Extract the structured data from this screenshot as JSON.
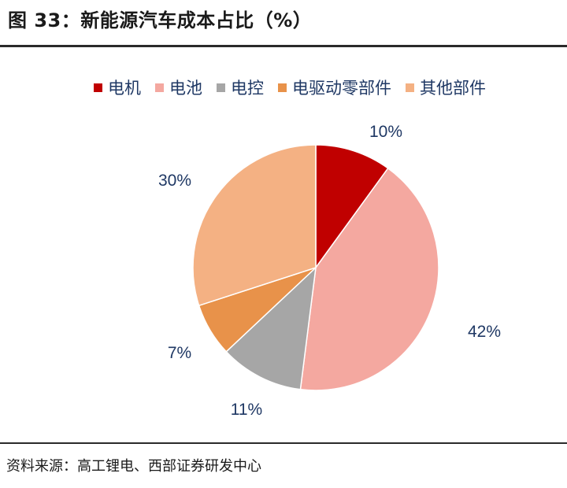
{
  "title": "图 33：新能源汽车成本占比（%）",
  "source": "资料来源：高工锂电、西部证券研发中心",
  "chart_data": {
    "type": "pie",
    "categories": [
      "电机",
      "电池",
      "电控",
      "电驱动零部件",
      "其他部件"
    ],
    "values": [
      10,
      42,
      11,
      7,
      30
    ],
    "value_labels": [
      "10%",
      "42%",
      "11%",
      "7%",
      "30%"
    ],
    "colors": [
      "#c00000",
      "#f4a8a0",
      "#a6a6a6",
      "#e8924a",
      "#f4b183"
    ],
    "legend_position": "top",
    "start_angle": "12 o'clock",
    "direction": "clockwise"
  }
}
